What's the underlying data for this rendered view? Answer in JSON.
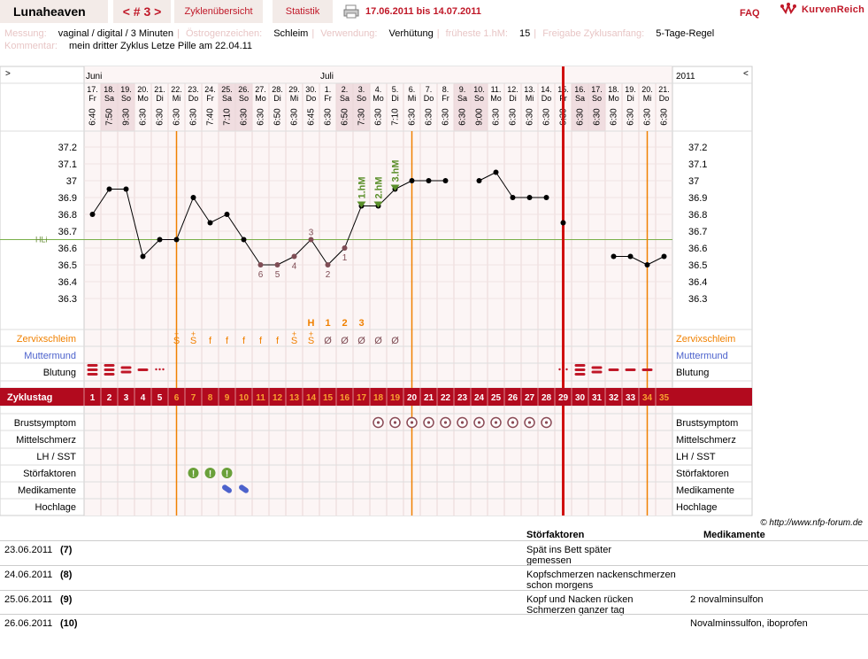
{
  "header": {
    "username": "Lunaheaven",
    "cycle_nav": "< # 3 >",
    "tab_overview": "Zyklenübersicht",
    "tab_stats": "Statistik",
    "date_range": "17.06.2011 bis 14.07.2011",
    "faq": "FAQ",
    "logo_text": "KurvenReich"
  },
  "info": {
    "measure_label": "Messung:",
    "measure_value": "vaginal / digital / 3 Minuten",
    "estrogen_label": "Östrogenzeichen:",
    "estrogen_value": "Schleim",
    "use_label": "Verwendung:",
    "use_value": "Verhütung",
    "earliest_label": "früheste 1.hM:",
    "earliest_value": "15",
    "release_label": "Freigabe Zyklusanfang:",
    "release_value": "5-Tage-Regel",
    "comment_label": "Kommentar:",
    "comment_value": "mein dritter Zyklus   Letze Pille am 22.04.11"
  },
  "calendar": {
    "nav_left": ">",
    "nav_right": "<",
    "months": [
      "Juni",
      "Juli"
    ],
    "year": "2011",
    "days": [
      "17.",
      "18.",
      "19.",
      "20.",
      "21.",
      "22.",
      "23.",
      "24.",
      "25.",
      "26.",
      "27.",
      "28.",
      "29.",
      "30.",
      "1.",
      "2.",
      "3.",
      "4.",
      "5.",
      "6.",
      "7.",
      "8.",
      "9.",
      "10.",
      "11.",
      "12.",
      "13.",
      "14.",
      "15.",
      "16.",
      "17.",
      "18.",
      "19.",
      "20.",
      "21."
    ],
    "weekdays": [
      "Fr",
      "Sa",
      "So",
      "Mo",
      "Di",
      "Mi",
      "Do",
      "Fr",
      "Sa",
      "So",
      "Mo",
      "Di",
      "Mi",
      "Do",
      "Fr",
      "Sa",
      "So",
      "Mo",
      "Di",
      "Mi",
      "Do",
      "Fr",
      "Sa",
      "So",
      "Mo",
      "Di",
      "Mi",
      "Do",
      "Fr",
      "Sa",
      "So",
      "Mo",
      "Di",
      "Mi",
      "Do"
    ],
    "times": [
      "6:40",
      "7:50",
      "9:30",
      "6:30",
      "6:30",
      "6:30",
      "6:30",
      "7:40",
      "7:10",
      "6:30",
      "6:30",
      "6:50",
      "6:30",
      "6:45",
      "6:30",
      "6:50",
      "7:30",
      "6:30",
      "7:10",
      "6:30",
      "6:30",
      "6:30",
      "6:30",
      "9:00",
      "6:30",
      "6:30",
      "6:30",
      "6:30",
      "6:30",
      "6:30",
      "6:30",
      "6:30",
      "6:30",
      "6:30",
      "6:30"
    ],
    "shaded_columns": [
      1,
      2,
      8,
      9,
      15,
      16,
      22,
      23,
      29,
      30
    ]
  },
  "chart_data": {
    "type": "line",
    "title": "",
    "xlabel": "Zyklustag",
    "ylabel": "",
    "ylim": [
      36.25,
      37.3
    ],
    "yticks": [
      "37.2",
      "37.1",
      "37",
      "36.9",
      "36.8",
      "36.7",
      "36.6",
      "36.5",
      "36.4",
      "36.3"
    ],
    "hli_label": "HLi",
    "hli_value": 36.65,
    "x": [
      1,
      2,
      3,
      4,
      5,
      6,
      7,
      8,
      9,
      10,
      11,
      12,
      13,
      14,
      15,
      16,
      17,
      18,
      19,
      20,
      21,
      22,
      23,
      24,
      25,
      26,
      27,
      28,
      29,
      30,
      31,
      32,
      33,
      34,
      35
    ],
    "series": [
      {
        "values": [
          36.8,
          36.95,
          36.95,
          36.55,
          36.65,
          36.65,
          36.9,
          36.75,
          36.8,
          36.65,
          36.5,
          36.5,
          36.55,
          36.65,
          36.5,
          36.6,
          36.85,
          36.85,
          36.95,
          37.0,
          37.0,
          37.0,
          null,
          37.0,
          37.05,
          36.9,
          36.9,
          36.9,
          36.75,
          null,
          null,
          36.55,
          36.55,
          36.5,
          36.55
        ]
      }
    ],
    "lower_count_labels": [
      {
        "day": 11,
        "label": "6"
      },
      {
        "day": 12,
        "label": "5"
      },
      {
        "day": 13,
        "label": "4"
      },
      {
        "day": 14,
        "label": "3"
      },
      {
        "day": 15,
        "label": "2"
      },
      {
        "day": 16,
        "label": "1"
      }
    ],
    "hm_markers": [
      {
        "day": 17,
        "label": "1.hM"
      },
      {
        "day": 18,
        "label": "2.hM"
      },
      {
        "day": 19,
        "label": "3.hM"
      }
    ],
    "peak_labels": [
      {
        "day": 14,
        "label": "H"
      },
      {
        "day": 15,
        "label": "1"
      },
      {
        "day": 16,
        "label": "2"
      },
      {
        "day": 17,
        "label": "3"
      }
    ],
    "ovulation_lines_days": [
      5.5,
      19.5,
      33.5
    ],
    "cycle_end_day": 28.5
  },
  "rows": {
    "zervix_label": "Zervixschleim",
    "muttermund_label": "Muttermund",
    "blutung_label": "Blutung",
    "zyklustag_label": "Zyklustag",
    "brust_label": "Brustsymptom",
    "mittel_label": "Mittelschmerz",
    "lh_label": "LH / SST",
    "stoer_label": "Störfaktoren",
    "medi_label": "Medikamente",
    "hoch_label": "Hochlage",
    "zervix": [
      "",
      "",
      "",
      "",
      "",
      "S",
      "S",
      "f",
      "f",
      "f",
      "f",
      "f",
      "S",
      "S",
      "Ø",
      "Ø",
      "Ø",
      "Ø",
      "Ø"
    ],
    "zervix_plus_days": [
      6,
      7,
      13,
      14
    ]
  },
  "copyright": "© http://www.nfp-forum.de",
  "notes": {
    "col_stoer": "Störfaktoren",
    "col_medi": "Medikamente",
    "entries": [
      {
        "date": "23.06.2011",
        "day": "(7)",
        "stoer_lines": [
          "Spät ins Bett später",
          "gemessen"
        ],
        "medi": ""
      },
      {
        "date": "24.06.2011",
        "day": "(8)",
        "stoer_lines": [
          "Kopfschmerzen nackenschmerzen",
          "schon morgens"
        ],
        "medi": ""
      },
      {
        "date": "25.06.2011",
        "day": "(9)",
        "stoer_lines": [
          "Kopf und Nacken rücken",
          "Schmerzen ganzer tag"
        ],
        "medi": "2 novalminsulfon"
      },
      {
        "date": "26.06.2011",
        "day": "(10)",
        "stoer_lines": [
          ""
        ],
        "medi": "Novalminssulfon, iboprofen"
      }
    ]
  },
  "colors": {
    "accent_red": "#b20a1e",
    "orange": "#f08000",
    "curve_point": "#000000",
    "low_point": "#7f4d55",
    "hm_green": "#5a8f2a",
    "hli_line": "#7ab04a",
    "muttermund_blue": "#4c62cc"
  }
}
